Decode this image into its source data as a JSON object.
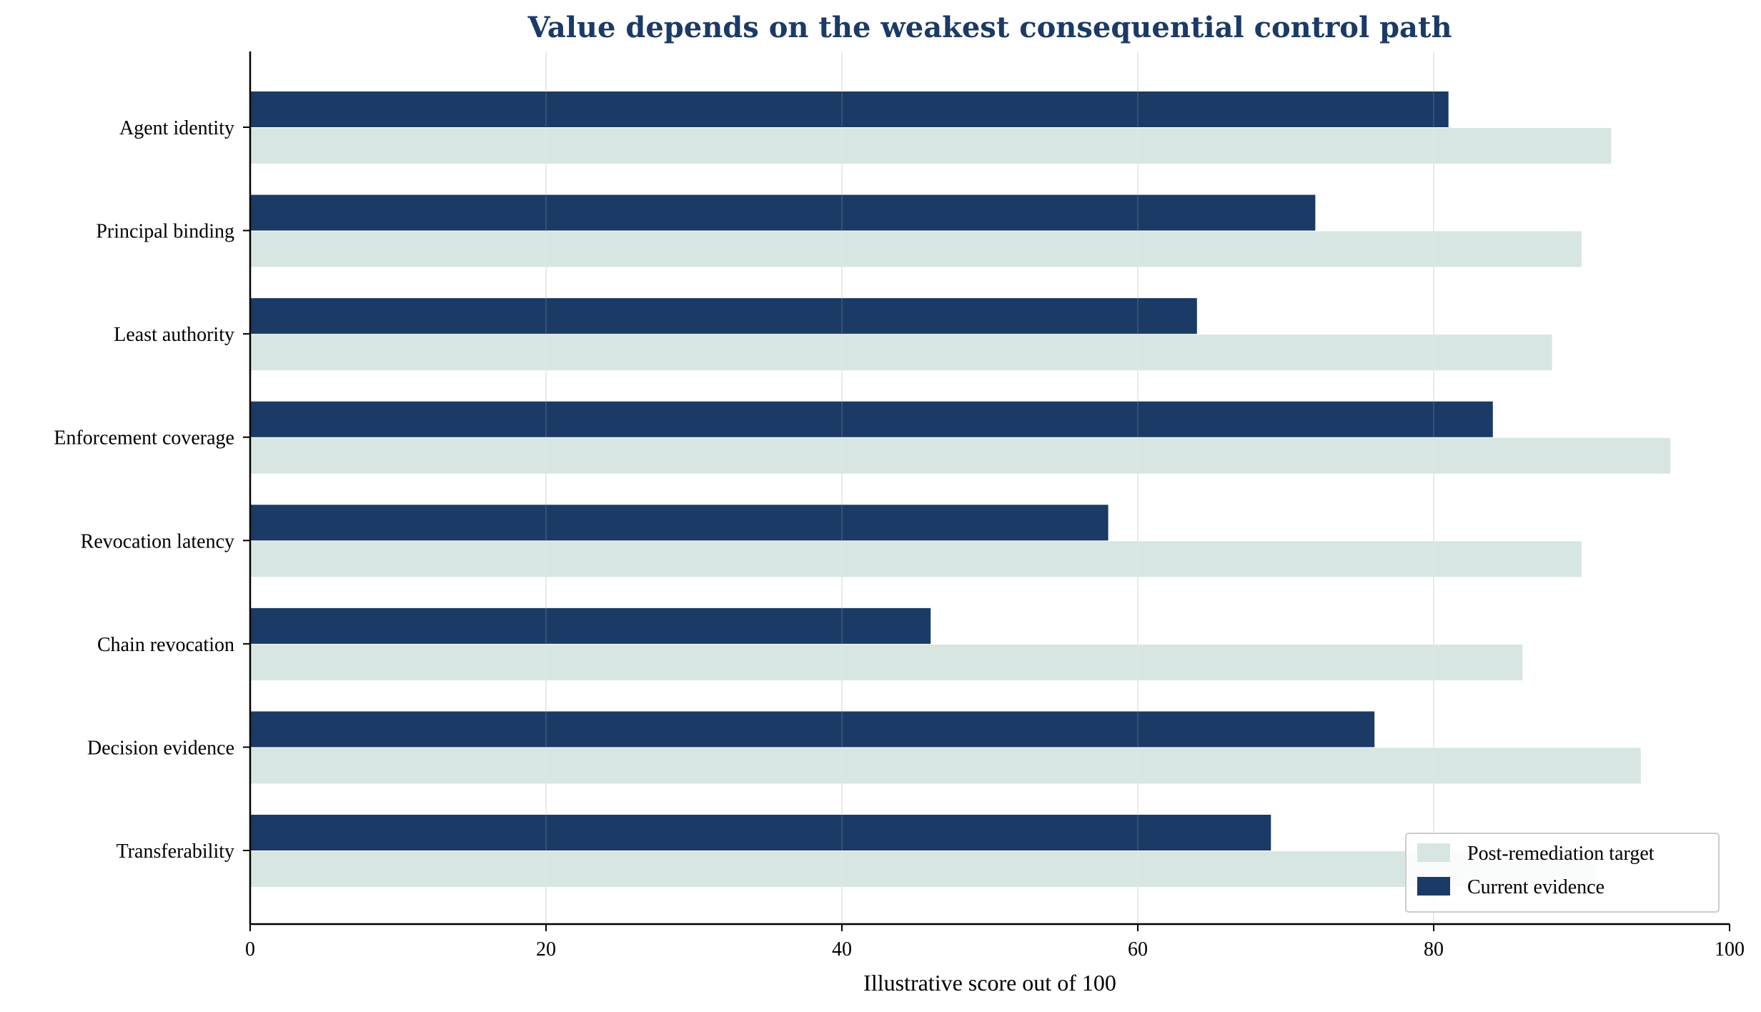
{
  "chart_data": {
    "type": "bar",
    "orientation": "horizontal",
    "title": "Value depends on the weakest consequential control path",
    "xlabel": "Illustrative score out of 100",
    "ylabel": "",
    "xlim": [
      0,
      100
    ],
    "xticks": [
      0,
      20,
      40,
      60,
      80,
      100
    ],
    "grid": "vertical",
    "legend": "bottom-right",
    "categories": [
      "Agent identity",
      "Principal binding",
      "Least authority",
      "Enforcement coverage",
      "Revocation latency",
      "Chain revocation",
      "Decision evidence",
      "Transferability"
    ],
    "series": [
      {
        "name": "Post-remediation target",
        "color": "#d7e6e2",
        "values": [
          92,
          90,
          88,
          96,
          90,
          86,
          94,
          91
        ]
      },
      {
        "name": "Current evidence",
        "color": "#1b3a66",
        "values": [
          81,
          72,
          64,
          84,
          58,
          46,
          76,
          69
        ]
      }
    ]
  }
}
